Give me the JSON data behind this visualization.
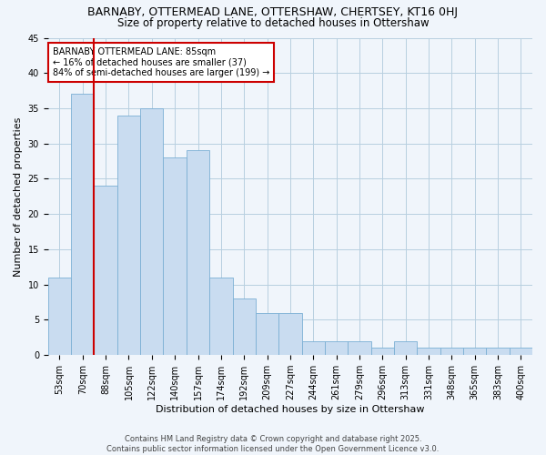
{
  "title": "BARNABY, OTTERMEAD LANE, OTTERSHAW, CHERTSEY, KT16 0HJ",
  "subtitle": "Size of property relative to detached houses in Ottershaw",
  "xlabel": "Distribution of detached houses by size in Ottershaw",
  "ylabel": "Number of detached properties",
  "bar_labels": [
    "53sqm",
    "70sqm",
    "88sqm",
    "105sqm",
    "122sqm",
    "140sqm",
    "157sqm",
    "174sqm",
    "192sqm",
    "209sqm",
    "227sqm",
    "244sqm",
    "261sqm",
    "279sqm",
    "296sqm",
    "313sqm",
    "331sqm",
    "348sqm",
    "365sqm",
    "383sqm",
    "400sqm"
  ],
  "bar_values": [
    11,
    37,
    24,
    34,
    35,
    28,
    29,
    11,
    8,
    6,
    6,
    2,
    2,
    2,
    1,
    2,
    1,
    1,
    1,
    1,
    1
  ],
  "bar_color": "#c9dcf0",
  "bar_edge_color": "#7bafd4",
  "grid_color": "#b8cfe0",
  "background_color": "#f0f5fb",
  "plot_bg_color": "#f0f5fb",
  "vline_color": "#cc0000",
  "annotation_text": "BARNABY OTTERMEAD LANE: 85sqm\n← 16% of detached houses are smaller (37)\n84% of semi-detached houses are larger (199) →",
  "annotation_box_facecolor": "#ffffff",
  "annotation_box_edgecolor": "#cc0000",
  "footnote": "Contains HM Land Registry data © Crown copyright and database right 2025.\nContains public sector information licensed under the Open Government Licence v3.0.",
  "ylim": [
    0,
    45
  ],
  "yticks": [
    0,
    5,
    10,
    15,
    20,
    25,
    30,
    35,
    40,
    45
  ],
  "title_fontsize": 9,
  "subtitle_fontsize": 8.5,
  "xlabel_fontsize": 8,
  "ylabel_fontsize": 8,
  "tick_fontsize": 7,
  "footnote_fontsize": 6,
  "annotation_fontsize": 7
}
